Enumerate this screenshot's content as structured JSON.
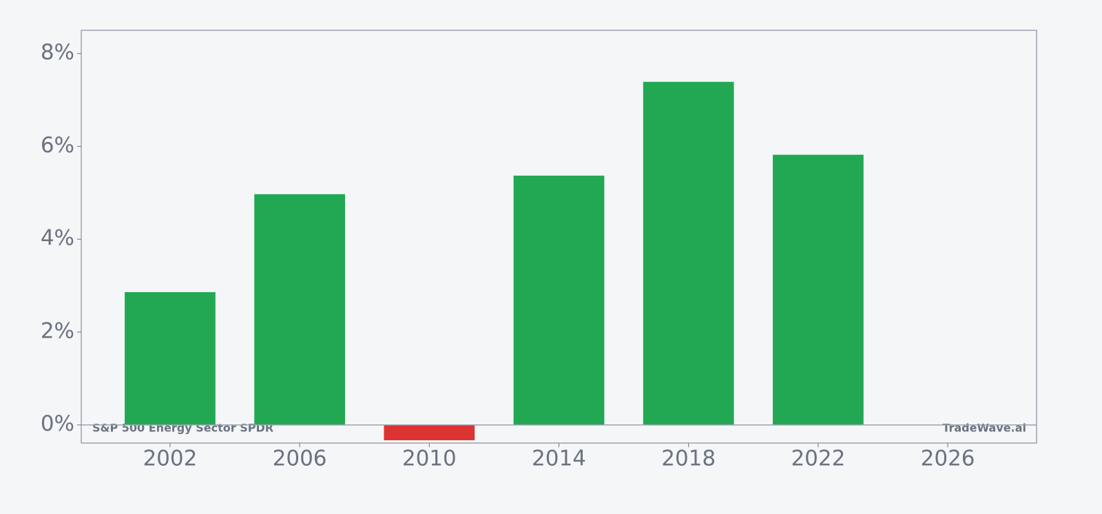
{
  "chart_data": {
    "type": "bar",
    "x": [
      2002,
      2006,
      2010,
      2014,
      2018,
      2022
    ],
    "values": [
      2.86,
      4.97,
      -0.33,
      5.37,
      7.39,
      5.82
    ],
    "bar_width": 2.8,
    "positive_color": "#22a853",
    "negative_color": "#dc3333",
    "xlim": [
      1999.26,
      2028.74
    ],
    "xticks": [
      2002,
      2006,
      2010,
      2014,
      2018,
      2022,
      2026
    ],
    "ylim": [
      -0.39,
      8.5
    ],
    "yticks": [
      {
        "value": 0,
        "label": "0%"
      },
      {
        "value": 2,
        "label": "2%"
      },
      {
        "value": 4,
        "label": "4%"
      },
      {
        "value": 6,
        "label": "6%"
      },
      {
        "value": 8,
        "label": "8%"
      }
    ],
    "grid": false,
    "annotations": [
      "S&P 500 Energy Sector SPDR",
      "TradeWave.ai"
    ]
  }
}
